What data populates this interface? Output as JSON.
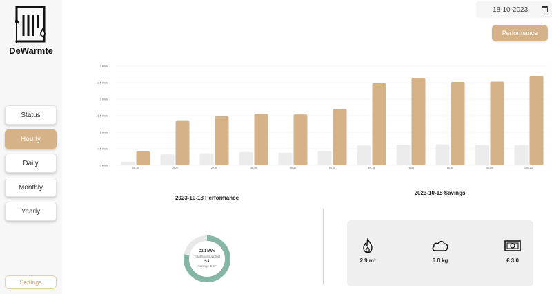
{
  "brand": {
    "name": "DeWarmte"
  },
  "nav": {
    "items": [
      {
        "label": "Status",
        "active": false
      },
      {
        "label": "Hourly",
        "active": true
      },
      {
        "label": "Daily",
        "active": false
      },
      {
        "label": "Monthly",
        "active": false
      },
      {
        "label": "Yearly",
        "active": false
      }
    ],
    "settings_label": "Settings"
  },
  "date": {
    "value": "18-10-2023"
  },
  "performance_button": {
    "label": "Performance"
  },
  "colors": {
    "accent": "#d6b288",
    "light_bar": "#ececec",
    "teal": "#84b5a5"
  },
  "chart_data": {
    "type": "bar",
    "categories": [
      "0h-1h",
      "1h-2h",
      "2h-3h",
      "3h-4h",
      "4h-5h",
      "5h-6h",
      "6h-7h",
      "7h-8h",
      "8h-9h",
      "9h-10h",
      "10h-11h"
    ],
    "series": [
      {
        "values": [
          0.1,
          0.33,
          0.36,
          0.4,
          0.38,
          0.43,
          0.6,
          0.62,
          0.63,
          0.61,
          0.61
        ]
      },
      {
        "values": [
          0.42,
          1.34,
          1.48,
          1.55,
          1.54,
          1.7,
          2.48,
          2.64,
          2.52,
          2.53,
          2.7
        ]
      }
    ],
    "yticks": [
      "0 kWh",
      "0.5 kWh",
      "1 kWh",
      "1.5 kWh",
      "2 kWh",
      "2.5 kWh",
      "3 kWh"
    ],
    "ylim": [
      0,
      3
    ],
    "grid": true
  },
  "performance": {
    "title": "2023-10-18 Performance",
    "total": "21.1 kWh",
    "total_label": "Total heat supplied",
    "cop": "4.1",
    "cop_label": "Average COP",
    "ring_fraction": 0.78
  },
  "savings": {
    "title": "2023-10-18 Savings",
    "gas": {
      "value": "2.9 m³",
      "icon": "flame-icon"
    },
    "co2": {
      "value": "6.0 kg",
      "icon": "cloud-icon"
    },
    "money": {
      "value": "€ 3.0",
      "icon": "money-icon"
    }
  }
}
